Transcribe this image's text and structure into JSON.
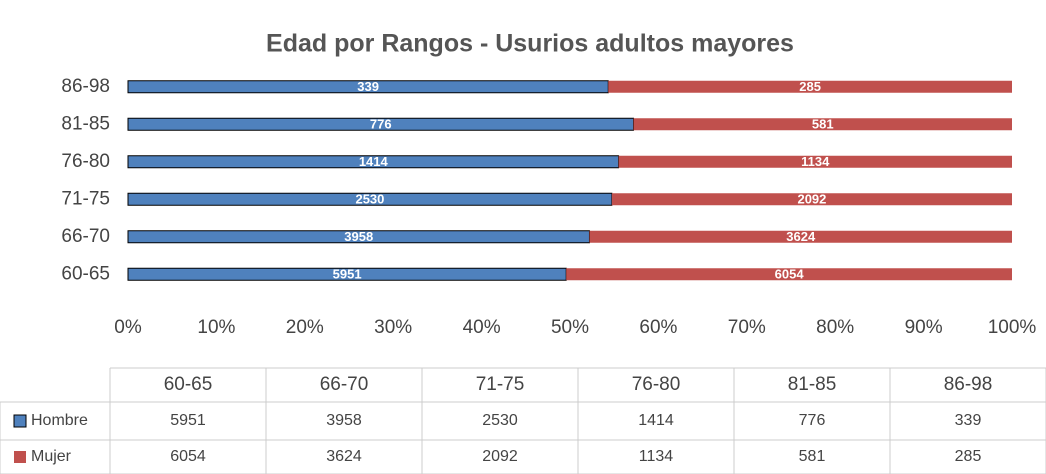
{
  "chart_data": {
    "type": "bar",
    "orientation": "horizontal",
    "stacked": "percent",
    "title": "Edad por Rangos - Usurios adultos mayores",
    "categories": [
      "60-65",
      "66-70",
      "71-75",
      "76-80",
      "81-85",
      "86-98"
    ],
    "series": [
      {
        "name": "Hombre",
        "color": "#4f81bd",
        "values": [
          5951,
          3958,
          2530,
          1414,
          776,
          339
        ]
      },
      {
        "name": "Mujer",
        "color": "#c0504d",
        "values": [
          6054,
          3624,
          2092,
          1134,
          581,
          285
        ]
      }
    ],
    "xlim": [
      0,
      100
    ],
    "xticks": [
      {
        "value": 0,
        "label": "0%"
      },
      {
        "value": 10,
        "label": "10%"
      },
      {
        "value": 20,
        "label": "20%"
      },
      {
        "value": 30,
        "label": "30%"
      },
      {
        "value": 40,
        "label": "40%"
      },
      {
        "value": 50,
        "label": "50%"
      },
      {
        "value": 60,
        "label": "60%"
      },
      {
        "value": 70,
        "label": "70%"
      },
      {
        "value": 80,
        "label": "80%"
      },
      {
        "value": 90,
        "label": "90%"
      },
      {
        "value": 100,
        "label": "100%"
      }
    ],
    "grid": false,
    "data_table": true
  }
}
